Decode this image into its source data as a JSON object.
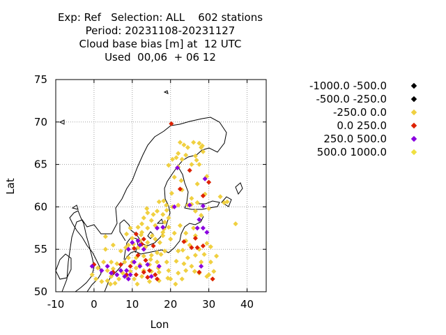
{
  "chart_data": {
    "type": "scatter",
    "title_lines": [
      "Exp: Ref   Selection: ALL    602 stations",
      "Period: 20231108-20231127",
      "Cloud base bias [m] at  12 UTC",
      "Used  00,06  + 06 12"
    ],
    "xlabel": "Lon",
    "ylabel": "Lat",
    "xlim": [
      -10,
      45
    ],
    "ylim": [
      50,
      75
    ],
    "xticks": [
      "-10",
      "0",
      "10",
      "20",
      "30",
      "40"
    ],
    "yticks": [
      "50",
      "55",
      "60",
      "65",
      "70",
      "75"
    ],
    "grid": true,
    "legend_position": "right",
    "legend": [
      {
        "label": "-1000.0 -500.0",
        "color": "#000000"
      },
      {
        "label": "-500.0 -250.0",
        "color": "#000000"
      },
      {
        "label": "-250.0 0.0",
        "color": "#f0d040"
      },
      {
        "label": "0.0 250.0",
        "color": "#dd2200"
      },
      {
        "label": "250.0 500.0",
        "color": "#8a00e0"
      },
      {
        "label": "500.0 1000.0",
        "color": "#f0e040"
      }
    ],
    "series": [
      {
        "color": "#f0d040",
        "points": [
          [
            22.5,
            67.6
          ],
          [
            23.5,
            67.3
          ],
          [
            26.0,
            67.6
          ],
          [
            27.5,
            67.5
          ],
          [
            24.5,
            67.0
          ],
          [
            28.0,
            67.0
          ],
          [
            22.0,
            66.3
          ],
          [
            24.0,
            66.1
          ],
          [
            21.5,
            65.8
          ],
          [
            26.5,
            66.0
          ],
          [
            28.5,
            66.5
          ],
          [
            20.5,
            65.6
          ],
          [
            23.0,
            65.6
          ],
          [
            25.5,
            65.0
          ],
          [
            27.5,
            65.0
          ],
          [
            19.5,
            64.9
          ],
          [
            22.0,
            64.7
          ],
          [
            29.5,
            63.6
          ],
          [
            22.8,
            63.1
          ],
          [
            27.0,
            62.7
          ],
          [
            23.0,
            62.0
          ],
          [
            20.3,
            61.6
          ],
          [
            25.5,
            61.0
          ],
          [
            29.0,
            61.5
          ],
          [
            33.0,
            61.2
          ],
          [
            34.0,
            60.5
          ],
          [
            34.8,
            60.6
          ],
          [
            17.0,
            60.6
          ],
          [
            18.2,
            60.7
          ],
          [
            18.9,
            60.2
          ],
          [
            20.5,
            60.0
          ],
          [
            22.0,
            60.2
          ],
          [
            24.5,
            60.2
          ],
          [
            25.5,
            60.3
          ],
          [
            27.0,
            60.5
          ],
          [
            30.0,
            59.8
          ],
          [
            16.5,
            59.5
          ],
          [
            19.0,
            59.6
          ],
          [
            26.5,
            59.5
          ],
          [
            14.0,
            59.3
          ],
          [
            15.5,
            59.1
          ],
          [
            18.0,
            59.1
          ],
          [
            28.0,
            59.0
          ],
          [
            13.0,
            58.7
          ],
          [
            15.0,
            58.4
          ],
          [
            18.5,
            58.2
          ],
          [
            12.5,
            58.0
          ],
          [
            16.0,
            57.8
          ],
          [
            19.5,
            57.6
          ],
          [
            22.5,
            57.8
          ],
          [
            26.0,
            57.5
          ],
          [
            14.0,
            57.5
          ],
          [
            18.0,
            57.0
          ],
          [
            12.5,
            57.0
          ],
          [
            21.0,
            56.9
          ],
          [
            24.0,
            56.9
          ],
          [
            26.5,
            56.6
          ],
          [
            9.5,
            57.5
          ],
          [
            11.5,
            57.6
          ],
          [
            8.5,
            56.8
          ],
          [
            10.0,
            56.3
          ],
          [
            12.0,
            56.0
          ],
          [
            14.0,
            55.8
          ],
          [
            16.0,
            56.2
          ],
          [
            18.0,
            56.6
          ],
          [
            24.0,
            56.0
          ],
          [
            3.0,
            56.5
          ],
          [
            5.0,
            55.5
          ],
          [
            9.0,
            55.5
          ],
          [
            11.5,
            55.2
          ],
          [
            13.5,
            55.3
          ],
          [
            25.0,
            55.5
          ],
          [
            27.5,
            55.0
          ],
          [
            29.5,
            55.7
          ],
          [
            30.5,
            55.3
          ],
          [
            32.0,
            54.2
          ],
          [
            22.0,
            54.8
          ],
          [
            16.5,
            54.6
          ],
          [
            18.5,
            54.8
          ],
          [
            26.5,
            54.3
          ],
          [
            7.0,
            54.8
          ],
          [
            9.0,
            54.0
          ],
          [
            11.0,
            54.0
          ],
          [
            13.0,
            54.2
          ],
          [
            15.0,
            54.3
          ],
          [
            17.5,
            54.4
          ],
          [
            24.5,
            54.0
          ],
          [
            28.0,
            53.5
          ],
          [
            30.5,
            53.5
          ],
          [
            2.5,
            53.5
          ],
          [
            4.5,
            53.5
          ],
          [
            6.0,
            53.3
          ],
          [
            8.0,
            53.5
          ],
          [
            10.0,
            53.5
          ],
          [
            12.0,
            53.2
          ],
          [
            14.5,
            53.2
          ],
          [
            16.5,
            53.5
          ],
          [
            19.0,
            53.5
          ],
          [
            21.5,
            53.6
          ],
          [
            23.5,
            53.3
          ],
          [
            25.5,
            53.0
          ],
          [
            1.0,
            52.8
          ],
          [
            3.5,
            52.5
          ],
          [
            5.0,
            52.7
          ],
          [
            7.5,
            52.2
          ],
          [
            9.5,
            52.4
          ],
          [
            11.0,
            52.8
          ],
          [
            13.0,
            52.5
          ],
          [
            15.0,
            52.4
          ],
          [
            17.0,
            52.3
          ],
          [
            19.5,
            52.5
          ],
          [
            22.0,
            52.2
          ],
          [
            24.0,
            52.5
          ],
          [
            27.5,
            52.2
          ],
          [
            30.0,
            52.0
          ],
          [
            31.0,
            51.5
          ],
          [
            -0.5,
            52.0
          ],
          [
            2.0,
            51.2
          ],
          [
            4.5,
            51.8
          ],
          [
            6.5,
            51.5
          ],
          [
            8.5,
            51.8
          ],
          [
            10.5,
            51.5
          ],
          [
            12.5,
            51.8
          ],
          [
            14.5,
            51.2
          ],
          [
            17.0,
            51.3
          ],
          [
            20.0,
            51.5
          ],
          [
            23.0,
            51.5
          ],
          [
            29.5,
            51.8
          ],
          [
            0.5,
            51.5
          ],
          [
            3.5,
            51.3
          ],
          [
            5.5,
            51.0
          ],
          [
            3.0,
            55.0
          ],
          [
            37.0,
            58.0
          ],
          [
            26.8,
            65.5
          ],
          [
            28.3,
            67.2
          ],
          [
            21.0,
            63.5
          ],
          [
            19.5,
            58.7
          ],
          [
            20.0,
            56.2
          ],
          [
            15.2,
            56.6
          ],
          [
            17.2,
            55.8
          ],
          [
            23.2,
            54.9
          ],
          [
            12.3,
            56.7
          ],
          [
            10.3,
            55.6
          ],
          [
            8.3,
            55.2
          ],
          [
            14.8,
            53.8
          ],
          [
            16.8,
            52.8
          ],
          [
            19.3,
            51.6
          ],
          [
            11.3,
            50.9
          ],
          [
            4.3,
            50.9
          ],
          [
            21.3,
            50.9
          ],
          [
            26.3,
            52.4
          ],
          [
            28.8,
            54.4
          ],
          [
            31.3,
            52.4
          ],
          [
            18.3,
            57.4
          ],
          [
            13.8,
            59.8
          ]
        ]
      },
      {
        "color": "#dd2200",
        "points": [
          [
            20.2,
            69.8
          ],
          [
            25.0,
            64.3
          ],
          [
            22.5,
            62.1
          ],
          [
            30.0,
            62.9
          ],
          [
            28.5,
            61.3
          ],
          [
            11.0,
            56.8
          ],
          [
            13.0,
            56.2
          ],
          [
            10.5,
            55.1
          ],
          [
            11.5,
            54.3
          ],
          [
            12.5,
            55.6
          ],
          [
            15.5,
            55.4
          ],
          [
            13.5,
            53.7
          ],
          [
            23.5,
            55.9
          ],
          [
            25.5,
            55.2
          ],
          [
            27.0,
            55.2
          ],
          [
            28.5,
            55.4
          ],
          [
            26.5,
            56.3
          ],
          [
            11.0,
            52.0
          ],
          [
            13.0,
            52.3
          ],
          [
            14.5,
            52.5
          ],
          [
            16.0,
            52.0
          ],
          [
            14.0,
            51.7
          ],
          [
            16.5,
            51.5
          ],
          [
            27.5,
            52.3
          ],
          [
            31.0,
            51.5
          ],
          [
            0.0,
            53.2
          ],
          [
            5.0,
            52.3
          ],
          [
            7.0,
            53.2
          ],
          [
            8.5,
            52.0
          ],
          [
            9.5,
            53.0
          ]
        ]
      },
      {
        "color": "#8a00e0",
        "points": [
          [
            21.8,
            64.6
          ],
          [
            29.0,
            63.3
          ],
          [
            21.0,
            60.0
          ],
          [
            25.0,
            60.2
          ],
          [
            28.5,
            60.1
          ],
          [
            27.5,
            58.5
          ],
          [
            28.5,
            57.5
          ],
          [
            16.5,
            57.5
          ],
          [
            18.0,
            57.6
          ],
          [
            27.0,
            57.5
          ],
          [
            29.5,
            57.0
          ],
          [
            10.0,
            55.8
          ],
          [
            11.5,
            56.0
          ],
          [
            12.0,
            55.5
          ],
          [
            13.0,
            55.0
          ],
          [
            9.0,
            55.0
          ],
          [
            10.5,
            53.5
          ],
          [
            12.0,
            53.0
          ],
          [
            7.0,
            52.5
          ],
          [
            8.0,
            51.8
          ],
          [
            9.5,
            52.0
          ],
          [
            9.0,
            51.5
          ],
          [
            8.5,
            52.5
          ],
          [
            4.5,
            52.2
          ],
          [
            3.5,
            53.0
          ],
          [
            2.0,
            52.5
          ],
          [
            6.0,
            52.0
          ],
          [
            14.0,
            53.2
          ],
          [
            17.0,
            53.0
          ],
          [
            28.0,
            53.0
          ],
          [
            -0.5,
            53.0
          ],
          [
            15.0,
            51.8
          ]
        ]
      }
    ]
  }
}
